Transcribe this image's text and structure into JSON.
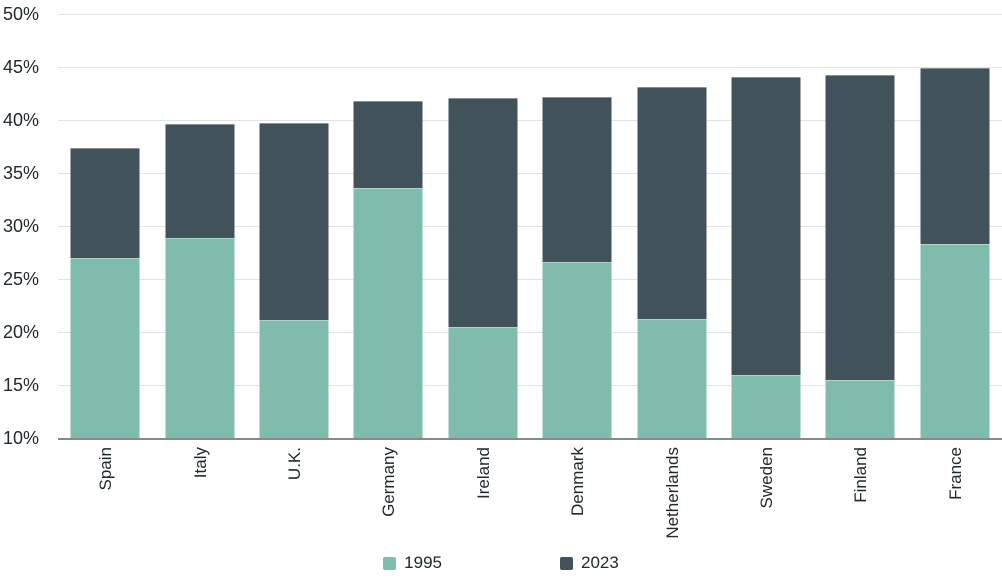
{
  "chart_data": {
    "type": "bar",
    "bar_style": "overlaid",
    "title": "",
    "xlabel": "",
    "ylabel": "",
    "categories": [
      "Spain",
      "Italy",
      "U.K.",
      "Germany",
      "Ireland",
      "Denmark",
      "Netherlands",
      "Sweden",
      "Finland",
      "France"
    ],
    "series": [
      {
        "name": "1995",
        "color": "#7FBCAB",
        "values": [
          27.0,
          28.9,
          21.1,
          33.6,
          20.5,
          26.6,
          21.2,
          15.9,
          15.5,
          28.3
        ]
      },
      {
        "name": "2023",
        "color": "#42525A",
        "values": [
          37.4,
          39.6,
          39.7,
          41.8,
          42.1,
          42.2,
          43.1,
          44.1,
          44.2,
          44.9
        ]
      }
    ],
    "ylim": [
      10,
      50
    ],
    "ytick_step": 5,
    "ytick_labels": [
      "50%",
      "45%",
      "40%",
      "35%",
      "30%",
      "25%",
      "20%",
      "15%",
      "10%"
    ],
    "value_suffix": "%",
    "grid": "horizontal",
    "gridline_color": "#E2E3E4",
    "axis_line_color": "#85898B",
    "text_color": "#20292D",
    "legend_position": "bottom"
  }
}
